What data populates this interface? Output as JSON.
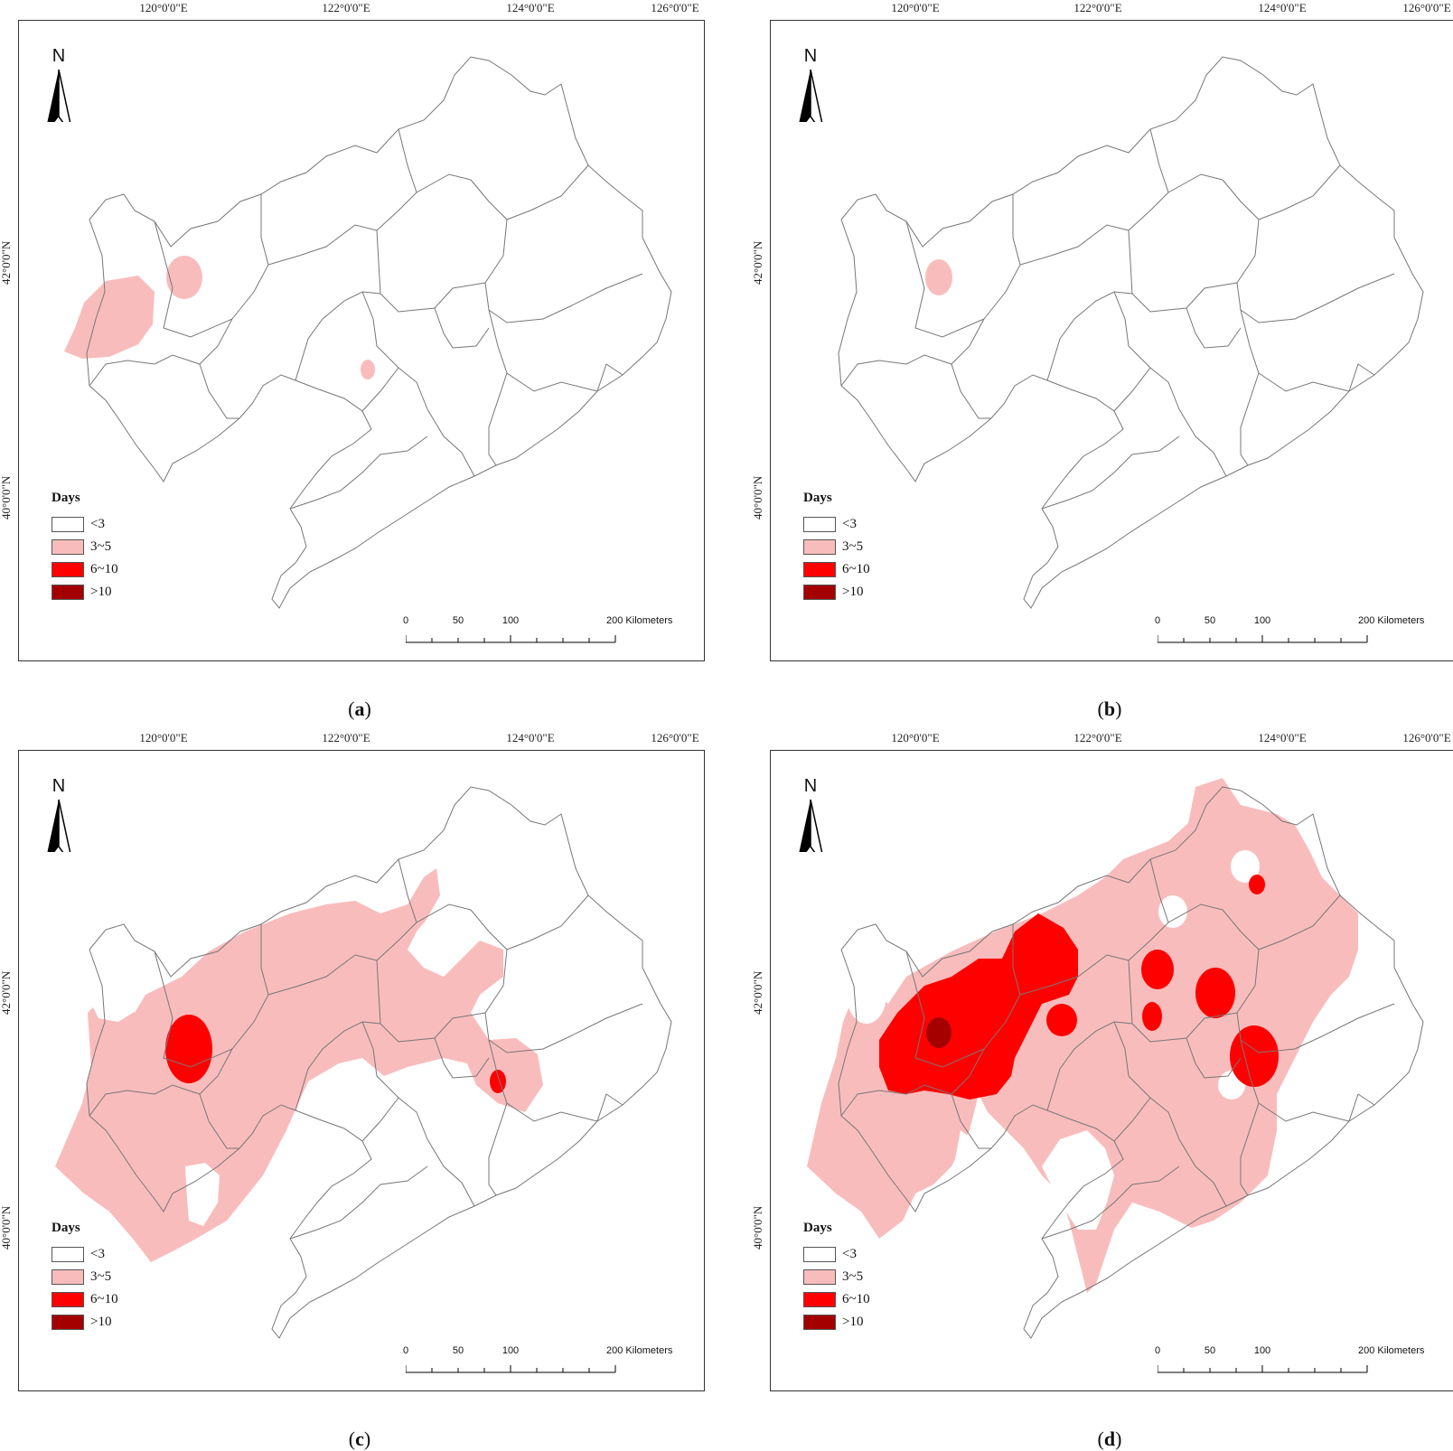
{
  "legend": {
    "title": "Days",
    "classes": [
      {
        "label": "<3",
        "color": "#ffffff"
      },
      {
        "label": "3~5",
        "color": "#f9bcbc"
      },
      {
        "label": "6~10",
        "color": "#ff0000"
      },
      {
        "label": ">10",
        "color": "#a50000"
      }
    ]
  },
  "longitudes": [
    "120°0'0\"E",
    "122°0'0\"E",
    "124°0'0\"E",
    "126°0'0\"E"
  ],
  "latitudes": [
    "42°0'0\"N",
    "40°0'0\"N"
  ],
  "north_label": "N",
  "scale": {
    "ticks": [
      "0",
      "50",
      "100",
      "200 Kilometers"
    ]
  },
  "panels": [
    {
      "letter": "a",
      "open": "(",
      "close": ")"
    },
    {
      "letter": "b",
      "open": "(",
      "close": ")"
    },
    {
      "letter": "c",
      "open": "(",
      "close": ")"
    },
    {
      "letter": "d",
      "open": "(",
      "close": ")"
    }
  ]
}
